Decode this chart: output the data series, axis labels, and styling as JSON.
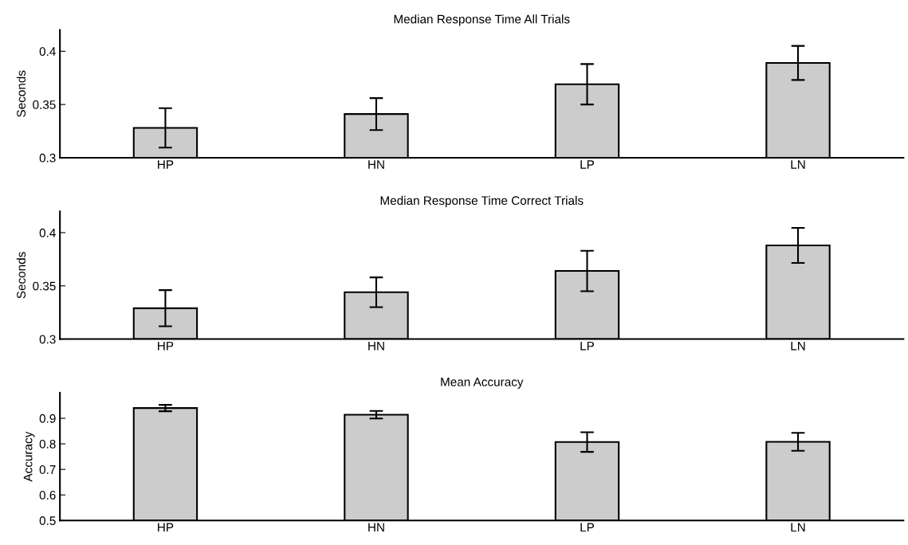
{
  "chart_data": [
    {
      "type": "bar",
      "title": "Median Response Time All Trials",
      "ylabel": "Seconds",
      "categories": [
        "HP",
        "HN",
        "LP",
        "LN"
      ],
      "color": "#cccccc",
      "values": [
        0.328,
        0.341,
        0.369,
        0.389
      ],
      "errors": [
        0.0185,
        0.015,
        0.019,
        0.016
      ],
      "ylim": [
        0.3,
        0.42
      ],
      "yticks": [
        0.3,
        0.35,
        0.4
      ],
      "grid": false,
      "legend": false
    },
    {
      "type": "bar",
      "title": "Median Response Time Correct Trials",
      "ylabel": "Seconds",
      "categories": [
        "HP",
        "HN",
        "LP",
        "LN"
      ],
      "color": "#cccccc",
      "values": [
        0.329,
        0.344,
        0.364,
        0.388
      ],
      "errors": [
        0.017,
        0.014,
        0.019,
        0.0165
      ],
      "ylim": [
        0.3,
        0.42
      ],
      "yticks": [
        0.3,
        0.35,
        0.4
      ],
      "grid": false,
      "legend": false
    },
    {
      "type": "bar",
      "title": "Mean Accuracy",
      "ylabel": "Accuracy",
      "categories": [
        "HP",
        "HN",
        "LP",
        "LN"
      ],
      "color": "#cccccc",
      "values": [
        0.94,
        0.914,
        0.807,
        0.808
      ],
      "errors": [
        0.0125,
        0.015,
        0.0385,
        0.035
      ],
      "ylim": [
        0.5,
        1.0
      ],
      "yticks": [
        0.5,
        0.6,
        0.7,
        0.8,
        0.9
      ],
      "grid": false,
      "legend": false
    }
  ]
}
